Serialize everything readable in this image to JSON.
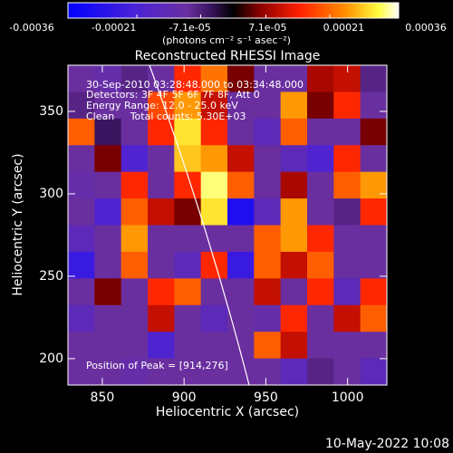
{
  "chart_data": {
    "type": "heatmap",
    "title": "Reconstructed RHESSI Image",
    "colorbar_unit": "(photons cm⁻² s⁻¹ asec⁻²)",
    "clim": [
      -0.00036,
      0.00036
    ],
    "colorbar_ticks": [
      -0.00036,
      -0.00021,
      {
        "value": -7.1e-05,
        "label": "-7.1e-05"
      },
      {
        "value": 7.1e-05,
        "label": "7.1e-05"
      },
      0.00021,
      0.00036
    ],
    "x_label": "Heliocentric X (arcsec)",
    "y_label": "Heliocentric Y (arcsec)",
    "xlim": [
      829,
      1024
    ],
    "ylim": [
      184,
      378
    ],
    "xticks": [
      850,
      900,
      950,
      1000
    ],
    "yticks": [
      200,
      250,
      300,
      350
    ],
    "annotations": [
      "30-Sep-2010 03:28:48.000 to 03:34:48.000",
      "Detectors: 3F 4F 5F 6F 7F 8F, Att 0",
      "Energy Range: 12.0 - 25.0 keV",
      "Clean     Total counts: 5.30E+03"
    ],
    "peak_label": "Position of Peak = [914,276]",
    "footer": "10-May-2022 10:08",
    "z": [
      [
        -0.0001,
        -0.00012,
        -8e-05,
        -0.0001,
        0.00015,
        0.00022,
        5e-05,
        -0.0001,
        -0.0001,
        8e-05,
        0.0001,
        -8e-05
      ],
      [
        -8e-05,
        -0.0001,
        -0.0001,
        0.00018,
        0.00025,
        0.0001,
        -0.0001,
        -0.0001,
        0.00025,
        5e-05,
        0.00015,
        -0.0001
      ],
      [
        0.0002,
        -5e-05,
        -0.0001,
        0.00015,
        0.0003,
        0.00015,
        -0.0001,
        -0.00015,
        0.0002,
        -0.0001,
        -0.0001,
        5e-05
      ],
      [
        -0.0001,
        5e-05,
        -0.0002,
        -0.0001,
        0.00028,
        0.00025,
        0.0001,
        -0.0001,
        -0.00015,
        -0.0002,
        0.00015,
        -0.0001
      ],
      [
        -0.00012,
        -0.0001,
        0.00015,
        -0.0001,
        0.00015,
        0.00033,
        0.0002,
        -0.0001,
        8e-05,
        -0.0001,
        0.0002,
        0.00025
      ],
      [
        -0.0001,
        -0.0002,
        0.0002,
        0.0001,
        5e-05,
        0.0003,
        -0.0003,
        -0.00015,
        0.00025,
        -0.0001,
        -8e-05,
        0.00015
      ],
      [
        -0.00015,
        -0.0001,
        0.00025,
        -0.0001,
        -0.0001,
        -0.0001,
        -0.0001,
        0.0002,
        0.00025,
        0.00015,
        -0.0001,
        -0.0001
      ],
      [
        -0.00025,
        -0.0001,
        0.0002,
        -0.0001,
        -0.00015,
        0.00015,
        -0.00025,
        0.0002,
        0.0001,
        0.0002,
        -0.0001,
        -0.0001
      ],
      [
        -0.0001,
        5e-05,
        -0.0001,
        0.00015,
        0.0002,
        -0.0001,
        -0.0001,
        0.0001,
        -0.0001,
        0.00015,
        -0.00015,
        0.00015
      ],
      [
        -0.00015,
        -0.0001,
        -0.0001,
        0.0001,
        -0.0001,
        -0.00015,
        -0.0001,
        -0.00012,
        0.00015,
        -0.0001,
        0.0001,
        0.0002
      ],
      [
        -0.0001,
        -0.0001,
        -0.0001,
        -0.0002,
        -0.0001,
        -0.0001,
        -0.0001,
        0.0002,
        0.0001,
        -0.0001,
        -0.0001,
        -0.0001
      ],
      [
        -0.0001,
        -0.0001,
        -0.00012,
        -0.0001,
        -0.0001,
        -0.0001,
        -0.0001,
        -0.0001,
        -0.00015,
        -8e-05,
        -0.0001,
        -0.00015
      ]
    ]
  }
}
